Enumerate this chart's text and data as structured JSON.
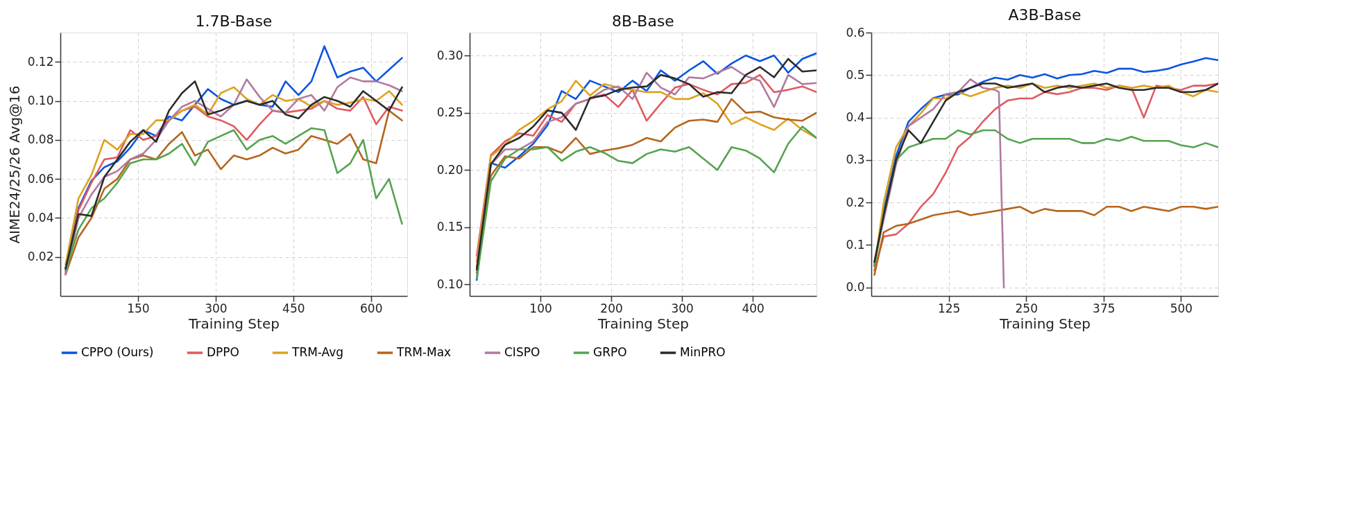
{
  "chart_data": [
    {
      "type": "line",
      "title": "1.7B-Base",
      "xlabel": "Training Step",
      "ylabel": "AIME24/25/26 Avg@16",
      "grid": true,
      "legend": "bottom",
      "x": [
        10,
        35,
        60,
        85,
        110,
        135,
        160,
        185,
        210,
        235,
        260,
        285,
        310,
        335,
        360,
        385,
        410,
        435,
        460,
        485,
        510,
        535,
        560,
        585,
        610,
        635,
        660
      ],
      "xlim": [
        0,
        670
      ],
      "xticks": [
        150,
        300,
        450,
        600
      ],
      "ylim": [
        0.0,
        0.135
      ],
      "yticks": [
        {
          "value": 0.02,
          "label": "0.02"
        },
        {
          "value": 0.04,
          "label": "0.04"
        },
        {
          "value": 0.06,
          "label": "0.06"
        },
        {
          "value": 0.08,
          "label": "0.08"
        },
        {
          "value": 0.1,
          "label": "0.10"
        },
        {
          "value": 0.12,
          "label": "0.12"
        }
      ],
      "series": [
        {
          "name": "CPPO (Ours)",
          "color": "#0b55e0",
          "values": [
            0.014,
            0.045,
            0.059,
            0.066,
            0.069,
            0.076,
            0.085,
            0.082,
            0.092,
            0.09,
            0.098,
            0.106,
            0.101,
            0.098,
            0.1,
            0.098,
            0.097,
            0.11,
            0.103,
            0.11,
            0.128,
            0.112,
            0.115,
            0.117,
            0.11,
            0.116,
            0.122
          ]
        },
        {
          "name": "DPPO",
          "color": "#e05a5f",
          "values": [
            0.012,
            0.044,
            0.058,
            0.07,
            0.071,
            0.085,
            0.08,
            0.082,
            0.09,
            0.095,
            0.097,
            0.092,
            0.09,
            0.087,
            0.08,
            0.088,
            0.095,
            0.094,
            0.095,
            0.096,
            0.1,
            0.096,
            0.095,
            0.102,
            0.088,
            0.097,
            0.095
          ]
        },
        {
          "name": "TRM-Avg",
          "color": "#dca21f",
          "values": [
            0.016,
            0.05,
            0.062,
            0.08,
            0.075,
            0.083,
            0.083,
            0.09,
            0.09,
            0.095,
            0.098,
            0.093,
            0.104,
            0.107,
            0.101,
            0.098,
            0.103,
            0.1,
            0.101,
            0.097,
            0.1,
            0.098,
            0.099,
            0.101,
            0.1,
            0.105,
            0.098
          ]
        },
        {
          "name": "TRM-Max",
          "color": "#b5651d",
          "values": [
            0.011,
            0.03,
            0.04,
            0.055,
            0.06,
            0.07,
            0.072,
            0.07,
            0.078,
            0.084,
            0.072,
            0.075,
            0.065,
            0.072,
            0.07,
            0.072,
            0.076,
            0.073,
            0.075,
            0.082,
            0.08,
            0.078,
            0.083,
            0.07,
            0.068,
            0.095,
            0.09
          ]
        },
        {
          "name": "CISPO",
          "color": "#b07aa1",
          "values": [
            0.011,
            0.04,
            0.052,
            0.061,
            0.064,
            0.07,
            0.073,
            0.08,
            0.09,
            0.097,
            0.1,
            0.096,
            0.092,
            0.098,
            0.111,
            0.102,
            0.095,
            0.094,
            0.101,
            0.103,
            0.095,
            0.107,
            0.112,
            0.11,
            0.11,
            0.108,
            0.105
          ]
        },
        {
          "name": "GRPO",
          "color": "#55a350",
          "values": [
            0.013,
            0.034,
            0.045,
            0.05,
            0.058,
            0.068,
            0.07,
            0.07,
            0.073,
            0.078,
            0.067,
            0.079,
            0.082,
            0.085,
            0.075,
            0.08,
            0.082,
            0.078,
            0.082,
            0.086,
            0.085,
            0.063,
            0.068,
            0.08,
            0.05,
            0.06,
            0.037
          ]
        },
        {
          "name": "MinPRO",
          "color": "#2b2b2b",
          "values": [
            0.014,
            0.042,
            0.041,
            0.061,
            0.07,
            0.079,
            0.085,
            0.079,
            0.095,
            0.104,
            0.11,
            0.093,
            0.095,
            0.098,
            0.1,
            0.098,
            0.1,
            0.093,
            0.091,
            0.098,
            0.102,
            0.1,
            0.097,
            0.105,
            0.1,
            0.095,
            0.107
          ]
        }
      ]
    },
    {
      "type": "line",
      "title": "8B-Base",
      "xlabel": "Training Step",
      "grid": true,
      "legend": "bottom",
      "x": [
        10,
        30,
        50,
        70,
        90,
        110,
        130,
        150,
        170,
        190,
        210,
        230,
        250,
        270,
        290,
        310,
        330,
        350,
        370,
        390,
        410,
        430,
        450,
        470,
        490
      ],
      "xlim": [
        0,
        490
      ],
      "xticks": [
        100,
        200,
        300,
        400
      ],
      "ylim": [
        0.09,
        0.32
      ],
      "yticks": [
        {
          "value": 0.1,
          "label": "0.10"
        },
        {
          "value": 0.15,
          "label": "0.15"
        },
        {
          "value": 0.2,
          "label": "0.20"
        },
        {
          "value": 0.25,
          "label": "0.25"
        },
        {
          "value": 0.3,
          "label": "0.30"
        }
      ],
      "series": [
        {
          "name": "CPPO (Ours)",
          "color": "#0b55e0",
          "values": [
            0.104,
            0.206,
            0.202,
            0.212,
            0.223,
            0.239,
            0.269,
            0.262,
            0.278,
            0.273,
            0.268,
            0.278,
            0.269,
            0.287,
            0.278,
            0.287,
            0.295,
            0.284,
            0.293,
            0.3,
            0.295,
            0.3,
            0.285,
            0.297,
            0.302
          ]
        },
        {
          "name": "DPPO",
          "color": "#e05a5f",
          "values": [
            0.125,
            0.213,
            0.225,
            0.232,
            0.23,
            0.248,
            0.242,
            0.258,
            0.262,
            0.266,
            0.255,
            0.27,
            0.243,
            0.258,
            0.272,
            0.275,
            0.27,
            0.266,
            0.275,
            0.276,
            0.283,
            0.268,
            0.27,
            0.273,
            0.268
          ]
        },
        {
          "name": "TRM-Avg",
          "color": "#dca21f",
          "values": [
            0.12,
            0.212,
            0.222,
            0.235,
            0.243,
            0.253,
            0.26,
            0.278,
            0.265,
            0.275,
            0.272,
            0.27,
            0.268,
            0.268,
            0.262,
            0.262,
            0.267,
            0.258,
            0.24,
            0.246,
            0.24,
            0.235,
            0.245,
            0.235,
            0.228
          ]
        },
        {
          "name": "TRM-Max",
          "color": "#b5651d",
          "values": [
            0.11,
            0.195,
            0.212,
            0.21,
            0.22,
            0.22,
            0.215,
            0.228,
            0.214,
            0.217,
            0.219,
            0.222,
            0.228,
            0.225,
            0.237,
            0.243,
            0.244,
            0.242,
            0.262,
            0.25,
            0.251,
            0.246,
            0.244,
            0.243,
            0.25
          ]
        },
        {
          "name": "CISPO",
          "color": "#b07aa1",
          "values": [
            0.115,
            0.205,
            0.218,
            0.218,
            0.225,
            0.242,
            0.246,
            0.258,
            0.262,
            0.27,
            0.273,
            0.262,
            0.285,
            0.272,
            0.266,
            0.281,
            0.28,
            0.285,
            0.29,
            0.282,
            0.278,
            0.255,
            0.283,
            0.275,
            0.276
          ]
        },
        {
          "name": "GRPO",
          "color": "#55a350",
          "values": [
            0.105,
            0.19,
            0.21,
            0.218,
            0.218,
            0.22,
            0.208,
            0.216,
            0.22,
            0.215,
            0.208,
            0.206,
            0.214,
            0.218,
            0.216,
            0.22,
            0.21,
            0.2,
            0.22,
            0.217,
            0.21,
            0.198,
            0.223,
            0.238,
            0.228
          ]
        },
        {
          "name": "MinPRO",
          "color": "#2b2b2b",
          "values": [
            0.113,
            0.205,
            0.222,
            0.228,
            0.238,
            0.252,
            0.25,
            0.235,
            0.263,
            0.265,
            0.27,
            0.272,
            0.273,
            0.283,
            0.28,
            0.275,
            0.264,
            0.268,
            0.267,
            0.283,
            0.29,
            0.281,
            0.297,
            0.286,
            0.287
          ]
        }
      ]
    },
    {
      "type": "line",
      "title": "A3B-Base",
      "xlabel": "Training Step",
      "grid": true,
      "legend": "bottom",
      "x": [
        5,
        20,
        40,
        60,
        80,
        100,
        120,
        140,
        160,
        180,
        200,
        220,
        240,
        260,
        280,
        300,
        320,
        340,
        360,
        380,
        400,
        420,
        440,
        460,
        480,
        500,
        520,
        540,
        560
      ],
      "xlim": [
        0,
        560
      ],
      "xticks": [
        125,
        250,
        375,
        500
      ],
      "ylim": [
        -0.02,
        0.6
      ],
      "yticks": [
        {
          "value": 0,
          "label": "0.0"
        },
        {
          "value": 0.1,
          "label": "0.1"
        },
        {
          "value": 0.2,
          "label": "0.2"
        },
        {
          "value": 0.3,
          "label": "0.3"
        },
        {
          "value": 0.4,
          "label": "0.4"
        },
        {
          "value": 0.5,
          "label": "0.5"
        },
        {
          "value": 0.6,
          "label": "0.6"
        }
      ],
      "series": [
        {
          "name": "CPPO (Ours)",
          "color": "#0b55e0",
          "values": [
            0.053,
            0.18,
            0.31,
            0.39,
            0.42,
            0.446,
            0.454,
            0.454,
            0.47,
            0.484,
            0.494,
            0.489,
            0.5,
            0.494,
            0.502,
            0.492,
            0.5,
            0.502,
            0.51,
            0.505,
            0.515,
            0.515,
            0.507,
            0.51,
            0.515,
            0.525,
            0.532,
            0.54,
            0.535
          ]
        },
        {
          "name": "DPPO",
          "color": "#e05a5f",
          "values": [
            0.04,
            0.12,
            0.125,
            0.15,
            0.19,
            0.22,
            0.27,
            0.33,
            0.355,
            0.39,
            0.42,
            0.44,
            0.445,
            0.445,
            0.46,
            0.455,
            0.46,
            0.47,
            0.47,
            0.465,
            0.475,
            0.47,
            0.4,
            0.475,
            0.47,
            0.465,
            0.475,
            0.475,
            0.48
          ]
        },
        {
          "name": "TRM-Avg",
          "color": "#dca21f",
          "values": [
            0.05,
            0.2,
            0.33,
            0.38,
            0.41,
            0.445,
            0.445,
            0.46,
            0.45,
            0.46,
            0.47,
            0.475,
            0.47,
            0.48,
            0.47,
            0.475,
            0.47,
            0.475,
            0.48,
            0.47,
            0.475,
            0.47,
            0.475,
            0.47,
            0.475,
            0.46,
            0.45,
            0.465,
            0.46
          ]
        },
        {
          "name": "TRM-Max",
          "color": "#b5651d",
          "values": [
            0.03,
            0.13,
            0.145,
            0.15,
            0.16,
            0.17,
            0.175,
            0.18,
            0.17,
            0.175,
            0.18,
            0.185,
            0.19,
            0.175,
            0.185,
            0.18,
            0.18,
            0.18,
            0.17,
            0.19,
            0.19,
            0.18,
            0.19,
            0.185,
            0.18,
            0.19,
            0.19,
            0.185,
            0.19
          ]
        },
        {
          "name": "CISPO",
          "color": "#b07aa1",
          "x": [
            5,
            20,
            40,
            60,
            80,
            100,
            120,
            140,
            160,
            180,
            200,
            206,
            214
          ],
          "values": [
            0.06,
            0.16,
            0.29,
            0.38,
            0.4,
            0.42,
            0.455,
            0.46,
            0.49,
            0.47,
            0.465,
            0.46,
            0.0
          ]
        },
        {
          "name": "GRPO",
          "color": "#55a350",
          "values": [
            0.05,
            0.17,
            0.3,
            0.33,
            0.34,
            0.35,
            0.35,
            0.37,
            0.36,
            0.37,
            0.37,
            0.35,
            0.34,
            0.35,
            0.35,
            0.35,
            0.35,
            0.34,
            0.34,
            0.35,
            0.345,
            0.355,
            0.345,
            0.345,
            0.345,
            0.335,
            0.33,
            0.34,
            0.33
          ]
        },
        {
          "name": "MinPRO",
          "color": "#2b2b2b",
          "values": [
            0.06,
            0.17,
            0.3,
            0.37,
            0.34,
            0.39,
            0.44,
            0.46,
            0.47,
            0.48,
            0.48,
            0.47,
            0.475,
            0.48,
            0.46,
            0.47,
            0.475,
            0.47,
            0.475,
            0.48,
            0.47,
            0.465,
            0.465,
            0.47,
            0.47,
            0.46,
            0.46,
            0.465,
            0.48
          ]
        }
      ]
    }
  ]
}
